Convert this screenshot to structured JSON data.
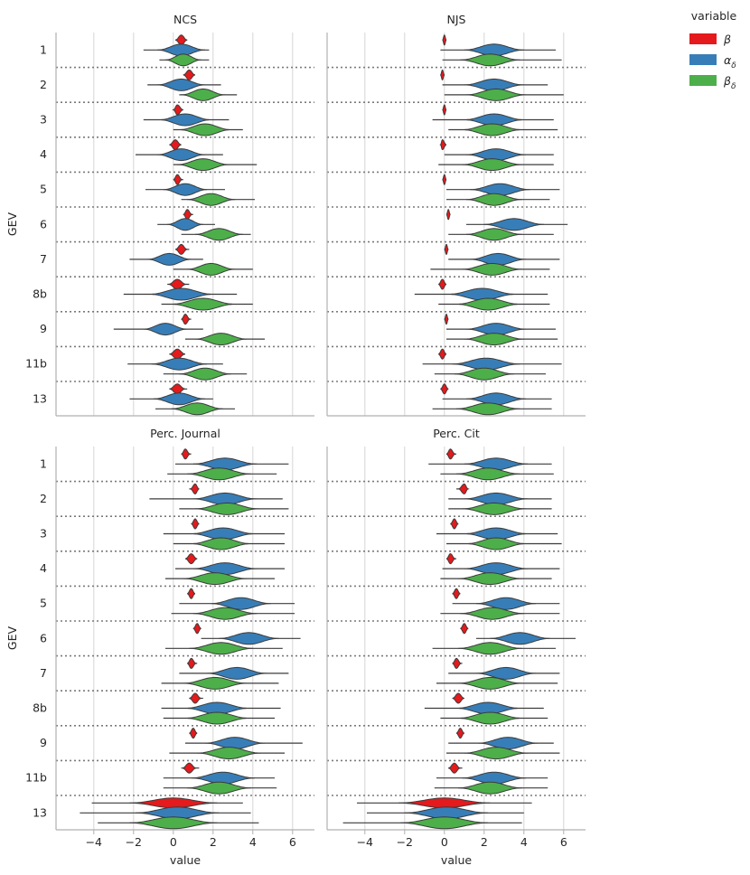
{
  "colors": {
    "beta": "#e41a1c",
    "alpha": "#377eb8",
    "beta_delta": "#4daf4a",
    "grid": "#d6d6d6",
    "separator": "#7a7a7a",
    "spine": "#b0b0b0",
    "violin_edge": "#3c3c3c"
  },
  "legend": {
    "title": "variable",
    "entries": [
      {
        "key": "beta",
        "label": "β",
        "sub": ""
      },
      {
        "key": "alpha",
        "label": "α",
        "sub": "δ"
      },
      {
        "key": "beta_delta",
        "label": "β",
        "sub": "δ"
      }
    ]
  },
  "chart_data": {
    "type": "violin",
    "orientation": "horizontal",
    "xlabel": "value",
    "ylabel": "GEV",
    "xlim": [
      -5.9,
      7.1
    ],
    "xticks": [
      -4,
      -2,
      0,
      2,
      4,
      6
    ],
    "xtick_labels": [
      "−4",
      "−2",
      "0",
      "2",
      "4",
      "6"
    ],
    "categories": [
      "1",
      "2",
      "3",
      "4",
      "5",
      "6",
      "7",
      "8b",
      "9",
      "11b",
      "13"
    ],
    "variables": [
      "beta",
      "alpha",
      "beta_delta"
    ],
    "panels": [
      {
        "title": "NCS",
        "series": [
          {
            "name": "beta",
            "values": [
              [
                0.4,
                0.1,
                0.7,
                0.3
              ],
              [
                0.8,
                0.5,
                1.1,
                0.3
              ],
              [
                0.2,
                0,
                0.5,
                0.3
              ],
              [
                0.1,
                -0.2,
                0.4,
                0.3
              ],
              [
                0.2,
                0,
                0.5,
                0.25
              ],
              [
                0.7,
                0.5,
                1,
                0.25
              ],
              [
                0.4,
                0.1,
                0.8,
                0.3
              ],
              [
                0.2,
                -0.3,
                0.8,
                0.45
              ],
              [
                0.6,
                0.4,
                0.9,
                0.25
              ],
              [
                0.2,
                -0.2,
                0.6,
                0.4
              ],
              [
                0.2,
                -0.2,
                0.7,
                0.4
              ]
            ]
          },
          {
            "name": "alpha",
            "values": [
              [
                0.4,
                -1.5,
                1.8,
                1.2
              ],
              [
                0.4,
                -1.3,
                2.4,
                1.2
              ],
              [
                0.6,
                -1.5,
                2.8,
                1.3
              ],
              [
                0.4,
                -1.9,
                2.5,
                1.2
              ],
              [
                0.6,
                -1.4,
                2.6,
                1.1
              ],
              [
                0.6,
                -0.8,
                2.1,
                0.9
              ],
              [
                -0.2,
                -2.2,
                1.5,
                1.1
              ],
              [
                0.4,
                -2.5,
                3.2,
                1.6
              ],
              [
                -0.4,
                -3,
                1.5,
                1.1
              ],
              [
                0.3,
                -2.3,
                2.5,
                1.4
              ],
              [
                0.3,
                -2.2,
                2,
                1.3
              ]
            ]
          },
          {
            "name": "beta_delta",
            "values": [
              [
                0.5,
                -0.7,
                1.8,
                0.9
              ],
              [
                1.5,
                0.3,
                3.2,
                1.1
              ],
              [
                1.6,
                0,
                3.5,
                1.3
              ],
              [
                1.5,
                0,
                4.2,
                1.3
              ],
              [
                1.9,
                0.4,
                4.1,
                1.2
              ],
              [
                2.3,
                0.4,
                3.9,
                1.2
              ],
              [
                1.9,
                0,
                4,
                1.2
              ],
              [
                1.5,
                -0.6,
                4,
                1.6
              ],
              [
                2.4,
                0.6,
                4.6,
                1.3
              ],
              [
                1.6,
                -0.5,
                3.7,
                1.3
              ],
              [
                1.2,
                -0.9,
                3.1,
                1.3
              ]
            ]
          }
        ]
      },
      {
        "title": "NJS",
        "series": [
          {
            "name": "beta",
            "values": [
              [
                0,
                -0.1,
                0.1,
                0.2
              ],
              [
                -0.1,
                -0.2,
                0,
                0.2
              ],
              [
                0,
                -0.1,
                0.1,
                0.15
              ],
              [
                -0.1,
                -0.2,
                0.1,
                0.2
              ],
              [
                0,
                -0.1,
                0.1,
                0.12
              ],
              [
                0.2,
                0.1,
                0.3,
                0.15
              ],
              [
                0.1,
                0,
                0.2,
                0.2
              ],
              [
                -0.1,
                -0.3,
                0.1,
                0.25
              ],
              [
                0.1,
                0,
                0.2,
                0.2
              ],
              [
                -0.1,
                -0.3,
                0.1,
                0.25
              ],
              [
                0,
                -0.2,
                0.2,
                0.3
              ]
            ]
          },
          {
            "name": "alpha",
            "values": [
              [
                2.5,
                -0.2,
                5.6,
                1.5
              ],
              [
                2.5,
                -0.1,
                5.2,
                1.5
              ],
              [
                2.5,
                -0.6,
                5.5,
                1.5
              ],
              [
                2.6,
                0,
                5.5,
                1.5
              ],
              [
                2.8,
                0.1,
                5.8,
                1.5
              ],
              [
                3.5,
                1.1,
                6.2,
                1.5
              ],
              [
                2.7,
                0.2,
                5.8,
                1.4
              ],
              [
                1.9,
                -1.5,
                5.2,
                1.7
              ],
              [
                2.6,
                0.1,
                5.6,
                1.5
              ],
              [
                2.1,
                -1.1,
                5.9,
                1.7
              ],
              [
                2.6,
                -0.1,
                5.4,
                1.5
              ]
            ]
          },
          {
            "name": "beta_delta",
            "values": [
              [
                2.3,
                -0.1,
                5.9,
                1.5
              ],
              [
                2.6,
                0,
                6,
                1.5
              ],
              [
                2.4,
                0.2,
                5.7,
                1.5
              ],
              [
                2.4,
                -0.3,
                5.5,
                1.5
              ],
              [
                2.5,
                0.1,
                5.3,
                1.4
              ],
              [
                2.5,
                0.2,
                5.5,
                1.4
              ],
              [
                2.4,
                -0.7,
                5.3,
                1.5
              ],
              [
                2.2,
                -0.3,
                5.3,
                1.6
              ],
              [
                2.5,
                0.1,
                5.7,
                1.5
              ],
              [
                2,
                -0.5,
                5.1,
                1.5
              ],
              [
                2.2,
                -0.6,
                5.4,
                1.6
              ]
            ]
          }
        ]
      },
      {
        "title": "Perc. Journal",
        "series": [
          {
            "name": "beta",
            "values": [
              [
                0.6,
                0.4,
                0.9,
                0.25
              ],
              [
                1.1,
                0.8,
                1.3,
                0.25
              ],
              [
                1.1,
                0.9,
                1.3,
                0.2
              ],
              [
                0.9,
                0.6,
                1.2,
                0.3
              ],
              [
                0.9,
                0.7,
                1.1,
                0.2
              ],
              [
                1.2,
                1,
                1.4,
                0.2
              ],
              [
                0.9,
                0.7,
                1.2,
                0.25
              ],
              [
                1.1,
                0.8,
                1.5,
                0.3
              ],
              [
                1,
                0.8,
                1.2,
                0.2
              ],
              [
                0.8,
                0.4,
                1.3,
                0.35
              ],
              [
                0,
                -4.1,
                3.5,
                2.2
              ]
            ]
          },
          {
            "name": "alpha",
            "values": [
              [
                2.6,
                0.1,
                5.8,
                1.6
              ],
              [
                2.6,
                -1.2,
                5.5,
                1.6
              ],
              [
                2.5,
                -0.5,
                5.6,
                1.6
              ],
              [
                2.6,
                0.1,
                5.6,
                1.6
              ],
              [
                3.4,
                0.3,
                6.1,
                1.5
              ],
              [
                3.8,
                1.4,
                6.4,
                1.5
              ],
              [
                3.2,
                0.3,
                5.8,
                1.5
              ],
              [
                2.2,
                -0.6,
                5.4,
                1.6
              ],
              [
                3.1,
                0.6,
                6.5,
                1.5
              ],
              [
                2.5,
                -0.5,
                5.1,
                1.6
              ],
              [
                0.2,
                -4.7,
                3.9,
                2.1
              ]
            ]
          },
          {
            "name": "beta_delta",
            "values": [
              [
                2.3,
                -0.3,
                5.2,
                1.6
              ],
              [
                2.7,
                0.3,
                5.8,
                1.6
              ],
              [
                2.4,
                0,
                5.6,
                1.5
              ],
              [
                2.1,
                -0.4,
                5.1,
                1.6
              ],
              [
                2.6,
                -0.1,
                6.1,
                1.6
              ],
              [
                2.4,
                -0.4,
                5.5,
                1.6
              ],
              [
                2.1,
                -0.6,
                5.3,
                1.6
              ],
              [
                2.2,
                -0.5,
                5.1,
                1.6
              ],
              [
                2.8,
                -0.2,
                5.6,
                1.6
              ],
              [
                2.3,
                -0.5,
                5.2,
                1.6
              ],
              [
                0,
                -3.8,
                4.3,
                2.2
              ]
            ]
          }
        ]
      },
      {
        "title": "Perc. Cit",
        "series": [
          {
            "name": "beta",
            "values": [
              [
                0.3,
                0.1,
                0.6,
                0.25
              ],
              [
                1,
                0.6,
                1.2,
                0.3
              ],
              [
                0.5,
                0.3,
                0.7,
                0.2
              ],
              [
                0.3,
                0.1,
                0.6,
                0.25
              ],
              [
                0.6,
                0.4,
                0.8,
                0.2
              ],
              [
                1,
                0.8,
                1.2,
                0.2
              ],
              [
                0.6,
                0.4,
                0.9,
                0.25
              ],
              [
                0.7,
                0.4,
                1,
                0.3
              ],
              [
                0.8,
                0.6,
                1,
                0.2
              ],
              [
                0.5,
                0.2,
                0.9,
                0.3
              ],
              [
                0,
                -4.4,
                4.4,
                2.3
              ]
            ]
          },
          {
            "name": "alpha",
            "values": [
              [
                2.6,
                -0.8,
                5.4,
                1.6
              ],
              [
                2.6,
                0.2,
                5.4,
                1.6
              ],
              [
                2.6,
                -0.4,
                5.7,
                1.6
              ],
              [
                2.6,
                -0.1,
                5.8,
                1.6
              ],
              [
                3.1,
                0.4,
                5.8,
                1.5
              ],
              [
                3.8,
                1.6,
                6.6,
                1.5
              ],
              [
                3.1,
                0.2,
                5.8,
                1.5
              ],
              [
                2.2,
                -1,
                5,
                1.6
              ],
              [
                3.2,
                0.2,
                5.5,
                1.5
              ],
              [
                2.5,
                -0.4,
                5.2,
                1.6
              ],
              [
                0.1,
                -3.9,
                4,
                2.1
              ]
            ]
          },
          {
            "name": "beta_delta",
            "values": [
              [
                2.2,
                -0.2,
                5.5,
                1.6
              ],
              [
                2.5,
                0.2,
                5.4,
                1.6
              ],
              [
                2.6,
                0.1,
                5.9,
                1.5
              ],
              [
                2.3,
                -0.2,
                5.4,
                1.6
              ],
              [
                2.4,
                -0.2,
                5.8,
                1.6
              ],
              [
                2.3,
                -0.6,
                5.6,
                1.6
              ],
              [
                2.3,
                -0.4,
                5.7,
                1.6
              ],
              [
                2.3,
                -0.2,
                5.2,
                1.6
              ],
              [
                2.6,
                0.1,
                5.8,
                1.6
              ],
              [
                2.3,
                -0.5,
                5.2,
                1.6
              ],
              [
                0,
                -5.1,
                3.9,
                2.2
              ]
            ]
          }
        ]
      }
    ]
  }
}
